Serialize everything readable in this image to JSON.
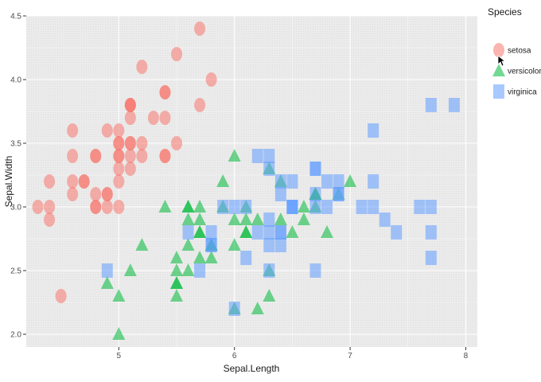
{
  "chart_data": {
    "type": "scatter",
    "xlabel": "Sepal.Length",
    "ylabel": "Sepal.Width",
    "xlim": [
      4.2,
      8.1
    ],
    "ylim": [
      1.9,
      4.5
    ],
    "x_ticks": [
      5,
      6,
      7,
      8
    ],
    "y_ticks": [
      2.0,
      2.5,
      3.0,
      3.5,
      4.0,
      4.5
    ],
    "y_tick_labels": [
      "2.0",
      "2.5",
      "3.0",
      "3.5",
      "4.0",
      "4.5"
    ],
    "grid": true,
    "legend": {
      "title": "Species",
      "position": "right"
    },
    "series": [
      {
        "name": "setosa",
        "shape": "circle",
        "color": "#f8766d",
        "points": [
          [
            5.1,
            3.5
          ],
          [
            4.9,
            3.0
          ],
          [
            4.7,
            3.2
          ],
          [
            4.6,
            3.1
          ],
          [
            5.0,
            3.6
          ],
          [
            5.4,
            3.9
          ],
          [
            4.6,
            3.4
          ],
          [
            5.0,
            3.4
          ],
          [
            4.4,
            2.9
          ],
          [
            4.9,
            3.1
          ],
          [
            5.4,
            3.7
          ],
          [
            4.8,
            3.4
          ],
          [
            4.8,
            3.0
          ],
          [
            4.3,
            3.0
          ],
          [
            5.8,
            4.0
          ],
          [
            5.7,
            4.4
          ],
          [
            5.4,
            3.9
          ],
          [
            5.1,
            3.5
          ],
          [
            5.7,
            3.8
          ],
          [
            5.1,
            3.8
          ],
          [
            5.4,
            3.4
          ],
          [
            5.1,
            3.7
          ],
          [
            4.6,
            3.6
          ],
          [
            5.1,
            3.3
          ],
          [
            4.8,
            3.4
          ],
          [
            5.0,
            3.0
          ],
          [
            5.0,
            3.4
          ],
          [
            5.2,
            3.5
          ],
          [
            5.2,
            3.4
          ],
          [
            4.7,
            3.2
          ],
          [
            4.8,
            3.1
          ],
          [
            5.4,
            3.4
          ],
          [
            5.2,
            4.1
          ],
          [
            5.5,
            4.2
          ],
          [
            4.9,
            3.1
          ],
          [
            5.0,
            3.2
          ],
          [
            5.5,
            3.5
          ],
          [
            4.9,
            3.6
          ],
          [
            4.4,
            3.0
          ],
          [
            5.1,
            3.4
          ],
          [
            5.0,
            3.5
          ],
          [
            4.5,
            2.3
          ],
          [
            4.4,
            3.2
          ],
          [
            5.0,
            3.5
          ],
          [
            5.1,
            3.8
          ],
          [
            4.8,
            3.0
          ],
          [
            5.1,
            3.8
          ],
          [
            4.6,
            3.2
          ],
          [
            5.3,
            3.7
          ],
          [
            5.0,
            3.3
          ]
        ]
      },
      {
        "name": "versicolor",
        "shape": "triangle",
        "color": "#00ba38",
        "points": [
          [
            7.0,
            3.2
          ],
          [
            6.4,
            3.2
          ],
          [
            6.9,
            3.1
          ],
          [
            5.5,
            2.3
          ],
          [
            6.5,
            2.8
          ],
          [
            5.7,
            2.8
          ],
          [
            6.3,
            3.3
          ],
          [
            4.9,
            2.4
          ],
          [
            6.6,
            2.9
          ],
          [
            5.2,
            2.7
          ],
          [
            5.0,
            2.0
          ],
          [
            5.9,
            3.0
          ],
          [
            6.0,
            2.2
          ],
          [
            6.1,
            2.9
          ],
          [
            5.6,
            2.9
          ],
          [
            6.7,
            3.1
          ],
          [
            5.6,
            3.0
          ],
          [
            5.8,
            2.7
          ],
          [
            6.2,
            2.2
          ],
          [
            5.6,
            2.5
          ],
          [
            5.9,
            3.2
          ],
          [
            6.1,
            2.8
          ],
          [
            6.3,
            2.5
          ],
          [
            6.1,
            2.8
          ],
          [
            6.4,
            2.9
          ],
          [
            6.6,
            3.0
          ],
          [
            6.8,
            2.8
          ],
          [
            6.7,
            3.0
          ],
          [
            6.0,
            2.9
          ],
          [
            5.7,
            2.6
          ],
          [
            5.5,
            2.4
          ],
          [
            5.5,
            2.4
          ],
          [
            5.8,
            2.7
          ],
          [
            6.0,
            2.7
          ],
          [
            5.4,
            3.0
          ],
          [
            6.0,
            3.4
          ],
          [
            6.7,
            3.1
          ],
          [
            6.3,
            2.3
          ],
          [
            5.6,
            3.0
          ],
          [
            5.5,
            2.5
          ],
          [
            5.5,
            2.6
          ],
          [
            6.1,
            3.0
          ],
          [
            5.8,
            2.6
          ],
          [
            5.0,
            2.3
          ],
          [
            5.6,
            2.7
          ],
          [
            5.7,
            3.0
          ],
          [
            5.7,
            2.9
          ],
          [
            6.2,
            2.9
          ],
          [
            5.1,
            2.5
          ],
          [
            5.7,
            2.8
          ]
        ]
      },
      {
        "name": "virginica",
        "shape": "square",
        "color": "#619cff",
        "points": [
          [
            6.3,
            3.3
          ],
          [
            5.8,
            2.7
          ],
          [
            7.1,
            3.0
          ],
          [
            6.3,
            2.9
          ],
          [
            6.5,
            3.0
          ],
          [
            7.6,
            3.0
          ],
          [
            4.9,
            2.5
          ],
          [
            7.3,
            2.9
          ],
          [
            6.7,
            2.5
          ],
          [
            7.2,
            3.6
          ],
          [
            6.5,
            3.2
          ],
          [
            6.4,
            2.7
          ],
          [
            6.8,
            3.0
          ],
          [
            5.7,
            2.5
          ],
          [
            5.8,
            2.8
          ],
          [
            6.4,
            3.2
          ],
          [
            6.5,
            3.0
          ],
          [
            7.7,
            3.8
          ],
          [
            7.7,
            2.6
          ],
          [
            6.0,
            2.2
          ],
          [
            6.9,
            3.2
          ],
          [
            5.6,
            2.8
          ],
          [
            7.7,
            2.8
          ],
          [
            6.3,
            2.7
          ],
          [
            6.7,
            3.3
          ],
          [
            7.2,
            3.2
          ],
          [
            6.2,
            2.8
          ],
          [
            6.1,
            3.0
          ],
          [
            6.4,
            2.8
          ],
          [
            7.2,
            3.0
          ],
          [
            7.4,
            2.8
          ],
          [
            7.9,
            3.8
          ],
          [
            6.4,
            2.8
          ],
          [
            6.3,
            2.8
          ],
          [
            6.1,
            2.6
          ],
          [
            7.7,
            3.0
          ],
          [
            6.3,
            3.4
          ],
          [
            6.4,
            3.1
          ],
          [
            6.0,
            3.0
          ],
          [
            6.9,
            3.1
          ],
          [
            6.7,
            3.1
          ],
          [
            6.9,
            3.1
          ],
          [
            5.8,
            2.7
          ],
          [
            6.8,
            3.2
          ],
          [
            6.7,
            3.3
          ],
          [
            6.7,
            3.0
          ],
          [
            6.3,
            2.5
          ],
          [
            6.5,
            3.0
          ],
          [
            6.2,
            3.4
          ],
          [
            5.9,
            3.0
          ]
        ]
      }
    ]
  }
}
